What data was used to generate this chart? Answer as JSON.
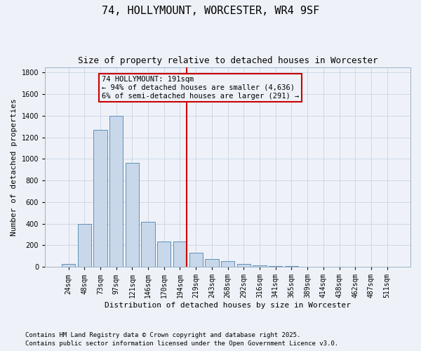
{
  "title": "74, HOLLYMOUNT, WORCESTER, WR4 9SF",
  "subtitle": "Size of property relative to detached houses in Worcester",
  "xlabel": "Distribution of detached houses by size in Worcester",
  "ylabel": "Number of detached properties",
  "categories": [
    "24sqm",
    "48sqm",
    "73sqm",
    "97sqm",
    "121sqm",
    "146sqm",
    "170sqm",
    "194sqm",
    "219sqm",
    "243sqm",
    "268sqm",
    "292sqm",
    "316sqm",
    "341sqm",
    "365sqm",
    "389sqm",
    "414sqm",
    "438sqm",
    "462sqm",
    "487sqm",
    "511sqm"
  ],
  "values": [
    25,
    400,
    1270,
    1400,
    960,
    415,
    235,
    235,
    130,
    70,
    50,
    30,
    15,
    10,
    5,
    3,
    2,
    1,
    1,
    0,
    0
  ],
  "bar_color": "#c8d8ea",
  "bar_edge_color": "#6090b8",
  "vline_color": "#cc0000",
  "annotation_title": "74 HOLLYMOUNT: 191sqm",
  "annotation_line1": "← 94% of detached houses are smaller (4,636)",
  "annotation_line2": "6% of semi-detached houses are larger (291) →",
  "annotation_box_color": "#cc0000",
  "ylim": [
    0,
    1850
  ],
  "yticks": [
    0,
    200,
    400,
    600,
    800,
    1000,
    1200,
    1400,
    1600,
    1800
  ],
  "grid_color": "#c8d4e4",
  "background_color": "#eef2f8",
  "footnote1": "Contains HM Land Registry data © Crown copyright and database right 2025.",
  "footnote2": "Contains public sector information licensed under the Open Government Licence v3.0.",
  "title_fontsize": 11,
  "subtitle_fontsize": 9,
  "axis_label_fontsize": 8,
  "tick_fontsize": 7,
  "annotation_fontsize": 7.5,
  "footnote_fontsize": 6.5
}
